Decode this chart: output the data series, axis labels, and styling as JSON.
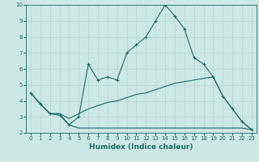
{
  "xlabel": "Humidex (Indice chaleur)",
  "bg_color": "#cce8e5",
  "grid_color": "#b8d4d0",
  "line_color": "#1a6b6b",
  "xlim": [
    -0.5,
    23.5
  ],
  "ylim": [
    2,
    10
  ],
  "yticks": [
    2,
    3,
    4,
    5,
    6,
    7,
    8,
    9,
    10
  ],
  "xticks": [
    0,
    1,
    2,
    3,
    4,
    5,
    6,
    7,
    8,
    9,
    10,
    11,
    12,
    13,
    14,
    15,
    16,
    17,
    18,
    19,
    20,
    21,
    22,
    23
  ],
  "line1_x": [
    0,
    1,
    2,
    3,
    4,
    5,
    6,
    7,
    8,
    9,
    10,
    11,
    12,
    13,
    14,
    15,
    16,
    17,
    18,
    19,
    20,
    21,
    22,
    23
  ],
  "line1_y": [
    4.5,
    3.8,
    3.2,
    3.1,
    2.5,
    3.0,
    6.3,
    5.3,
    5.5,
    5.3,
    7.0,
    7.5,
    8.0,
    9.0,
    10.0,
    9.3,
    8.5,
    6.7,
    6.3,
    5.5,
    4.3,
    3.5,
    2.7,
    2.2
  ],
  "line2_x": [
    0,
    1,
    2,
    3,
    4,
    5,
    6,
    7,
    8,
    9,
    10,
    11,
    12,
    13,
    14,
    15,
    16,
    17,
    18,
    19,
    20,
    21,
    22,
    23
  ],
  "line2_y": [
    4.5,
    3.8,
    3.2,
    3.2,
    2.5,
    2.3,
    2.3,
    2.3,
    2.3,
    2.3,
    2.3,
    2.3,
    2.3,
    2.3,
    2.3,
    2.3,
    2.3,
    2.3,
    2.3,
    2.3,
    2.3,
    2.3,
    2.3,
    2.2
  ],
  "line3_x": [
    0,
    1,
    2,
    3,
    4,
    5,
    6,
    7,
    8,
    9,
    10,
    11,
    12,
    13,
    14,
    15,
    16,
    17,
    18,
    19,
    20,
    21,
    22,
    23
  ],
  "line3_y": [
    4.5,
    3.8,
    3.2,
    3.2,
    2.9,
    3.2,
    3.5,
    3.7,
    3.9,
    4.0,
    4.2,
    4.4,
    4.5,
    4.7,
    4.9,
    5.1,
    5.2,
    5.3,
    5.4,
    5.5,
    4.3,
    3.5,
    2.7,
    2.2
  ],
  "tick_fontsize": 5,
  "xlabel_fontsize": 6.5,
  "xlabel_fontweight": "bold"
}
